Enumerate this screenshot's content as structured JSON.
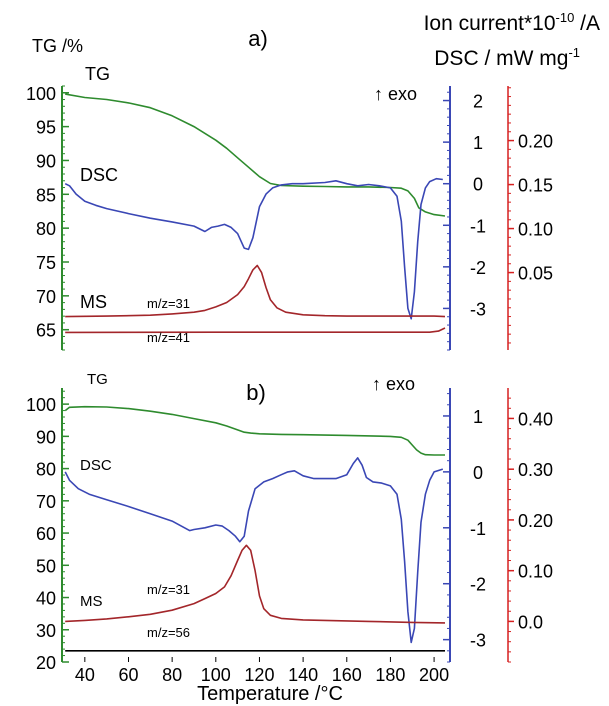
{
  "figure": {
    "ion_current_label": "Ion current*10",
    "ion_current_exp": "-10",
    "ion_current_unit": " /A",
    "dsc_axis_label": "DSC / mW mg",
    "dsc_axis_exp": "-1",
    "tg_axis_label": "TG /%",
    "x_axis_label": "Temperature /°C",
    "colors": {
      "tg": "#2e8b2e",
      "dsc": "#3a47b5",
      "ms": "#a3262a",
      "ms2": "#000000",
      "tg_axis": "#2e8b2e",
      "dsc_axis": "#3a47b5",
      "ion_axis": "#d62020"
    }
  },
  "chart_data": [
    {
      "panel_label": "a)",
      "type": "line",
      "xlim": [
        30,
        205
      ],
      "xticks": [
        "40",
        "60",
        "80",
        "100",
        "120",
        "140",
        "160",
        "180",
        "200"
      ],
      "tg_axis": {
        "ylim": [
          62,
          101
        ],
        "ticks": [
          "65",
          "70",
          "75",
          "80",
          "85",
          "90",
          "95",
          "100"
        ]
      },
      "dsc_axis": {
        "ylim": [
          -4.0,
          2.35
        ],
        "ticks": [
          "-3",
          "-2",
          "-1",
          "0",
          "1",
          "2"
        ]
      },
      "ion_axis": {
        "ylim": [
          -0.038,
          0.262
        ],
        "ticks": [
          "0.05",
          "0.10",
          "0.15",
          "0.20"
        ]
      },
      "annotations": {
        "tg": "TG",
        "dsc": "DSC",
        "ms": "MS",
        "exo": "↑ exo",
        "mz1": "m/z=31",
        "mz2": "m/z=41"
      },
      "series": [
        {
          "name": "TG",
          "axis": "tg",
          "x": [
            31,
            40,
            50,
            60,
            70,
            80,
            90,
            100,
            105,
            110,
            115,
            120,
            125,
            130,
            140,
            150,
            160,
            170,
            180,
            185,
            188,
            191,
            193,
            196,
            200,
            205
          ],
          "y": [
            99.8,
            99.3,
            99.0,
            98.5,
            97.8,
            96.6,
            95.0,
            93.0,
            91.8,
            90.4,
            89.0,
            87.6,
            86.6,
            86.3,
            86.2,
            86.15,
            86.1,
            86.1,
            86.0,
            85.9,
            85.5,
            84.4,
            83.0,
            82.4,
            82.0,
            81.8
          ]
        },
        {
          "name": "DSC",
          "axis": "dsc",
          "x": [
            31,
            33,
            36,
            40,
            45,
            50,
            60,
            70,
            80,
            90,
            95,
            98,
            101,
            104,
            107,
            110,
            113,
            115,
            117,
            120,
            123,
            126,
            130,
            135,
            140,
            150,
            155,
            160,
            165,
            170,
            175,
            180,
            183,
            185,
            186.5,
            188,
            189.5,
            191,
            192.5,
            194,
            196,
            198,
            201,
            204
          ],
          "y": [
            0.0,
            -0.05,
            -0.25,
            -0.42,
            -0.52,
            -0.6,
            -0.72,
            -0.83,
            -0.92,
            -1.02,
            -1.15,
            -1.05,
            -1.02,
            -0.98,
            -1.05,
            -1.2,
            -1.55,
            -1.58,
            -1.3,
            -0.55,
            -0.25,
            -0.1,
            -0.03,
            0.0,
            0.0,
            0.03,
            0.07,
            0.0,
            -0.05,
            -0.02,
            -0.05,
            -0.1,
            -0.3,
            -0.9,
            -2.0,
            -3.0,
            -3.25,
            -2.6,
            -1.4,
            -0.5,
            -0.1,
            0.05,
            0.12,
            0.1
          ]
        },
        {
          "name": "m/z=31",
          "axis": "ion",
          "x": [
            31,
            50,
            70,
            80,
            90,
            95,
            100,
            105,
            110,
            113,
            115,
            117,
            119,
            121,
            123,
            125,
            128,
            132,
            140,
            150,
            160,
            180,
            200,
            205
          ],
          "y": [
            0.0,
            0.0005,
            0.0015,
            0.003,
            0.005,
            0.007,
            0.011,
            0.016,
            0.025,
            0.034,
            0.043,
            0.053,
            0.058,
            0.05,
            0.033,
            0.019,
            0.01,
            0.005,
            0.002,
            0.001,
            0.0005,
            0.0005,
            0.0005,
            0.0
          ]
        },
        {
          "name": "m/z=41",
          "axis": "ion",
          "x": [
            31,
            100,
            150,
            198,
            202,
            205
          ],
          "y": [
            -0.018,
            -0.0178,
            -0.0178,
            -0.0178,
            -0.0165,
            -0.013
          ]
        }
      ]
    },
    {
      "panel_label": "b)",
      "type": "line",
      "xlim": [
        30,
        205
      ],
      "xticks": [
        "40",
        "60",
        "80",
        "100",
        "120",
        "140",
        "160",
        "180",
        "200"
      ],
      "tg_axis": {
        "ylim": [
          20,
          105
        ],
        "ticks": [
          "20",
          "30",
          "40",
          "50",
          "60",
          "70",
          "80",
          "90",
          "100"
        ]
      },
      "dsc_axis": {
        "ylim": [
          -3.4,
          1.5
        ],
        "ticks": [
          "-3",
          "-2",
          "-1",
          "0",
          "1"
        ]
      },
      "ion_axis": {
        "ylim": [
          -0.08,
          0.46
        ],
        "ticks": [
          "0.0",
          "0.10",
          "0.20",
          "0.30",
          "0.40"
        ]
      },
      "annotations": {
        "tg": "TG",
        "dsc": "DSC",
        "ms": "MS",
        "exo": "↑ exo",
        "mz1": "m/z=31",
        "mz2": "m/z=56"
      },
      "series": [
        {
          "name": "TG",
          "axis": "tg",
          "x": [
            31,
            33,
            40,
            50,
            60,
            70,
            80,
            90,
            100,
            105,
            110,
            113,
            116,
            120,
            130,
            140,
            160,
            180,
            185,
            188,
            190,
            192,
            194,
            196,
            200,
            205
          ],
          "y": [
            98.0,
            99.0,
            99.2,
            99.1,
            98.6,
            97.8,
            96.8,
            95.5,
            94.2,
            93.2,
            92.0,
            91.3,
            91.0,
            90.8,
            90.6,
            90.5,
            90.3,
            90.0,
            89.7,
            88.8,
            87.3,
            85.8,
            84.8,
            84.3,
            84.2,
            84.2
          ]
        },
        {
          "name": "DSC",
          "axis": "dsc",
          "x": [
            31,
            33,
            37,
            42,
            50,
            60,
            70,
            80,
            88,
            90,
            95,
            100,
            103,
            106,
            109,
            111,
            113,
            115,
            118,
            122,
            126,
            130,
            133,
            136,
            140,
            145,
            150,
            155,
            160,
            163,
            165,
            167,
            169,
            172,
            176,
            180,
            183,
            185,
            186.5,
            188,
            189.5,
            191,
            192.5,
            194,
            196,
            198,
            200,
            204
          ],
          "y": [
            0.0,
            -0.15,
            -0.3,
            -0.4,
            -0.5,
            -0.62,
            -0.75,
            -0.88,
            -1.05,
            -1.03,
            -1.0,
            -0.95,
            -0.97,
            -1.05,
            -1.15,
            -1.25,
            -1.15,
            -0.7,
            -0.3,
            -0.18,
            -0.12,
            -0.05,
            0.0,
            0.02,
            -0.07,
            -0.12,
            -0.12,
            -0.12,
            -0.05,
            0.15,
            0.25,
            0.12,
            -0.1,
            -0.18,
            -0.2,
            -0.25,
            -0.4,
            -0.85,
            -1.6,
            -2.5,
            -3.05,
            -2.8,
            -1.8,
            -0.9,
            -0.4,
            -0.15,
            0.0,
            0.05
          ]
        },
        {
          "name": "m/z=31",
          "axis": "ion",
          "x": [
            31,
            40,
            50,
            60,
            70,
            80,
            90,
            95,
            100,
            104,
            107,
            110,
            112,
            114,
            116,
            118,
            120,
            122,
            125,
            130,
            140,
            150,
            170,
            190,
            205
          ],
          "y": [
            0.0,
            0.002,
            0.005,
            0.009,
            0.014,
            0.022,
            0.035,
            0.045,
            0.055,
            0.068,
            0.09,
            0.12,
            0.14,
            0.15,
            0.14,
            0.1,
            0.05,
            0.025,
            0.012,
            0.006,
            0.003,
            0.002,
            0.0,
            -0.002,
            -0.003
          ]
        },
        {
          "name": "m/z=56",
          "axis": "ion",
          "x": [
            31,
            205
          ],
          "y": [
            -0.058,
            -0.058
          ]
        }
      ]
    }
  ]
}
